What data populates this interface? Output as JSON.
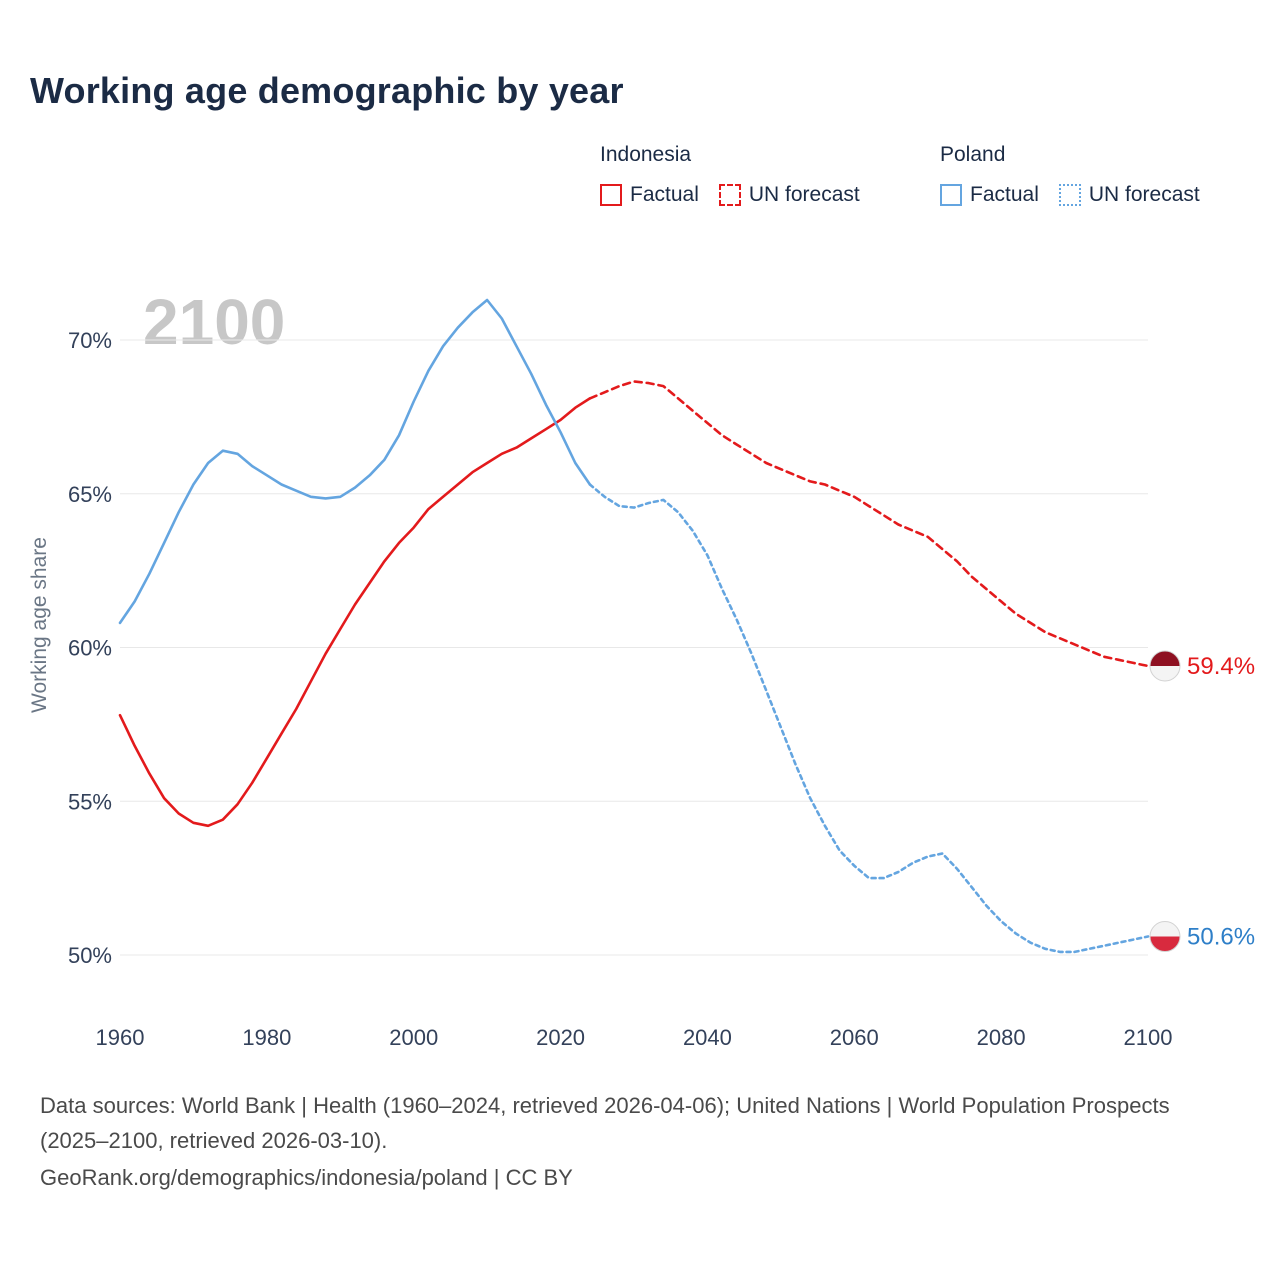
{
  "title": "Working age demographic by year",
  "watermark": "2100",
  "legend": {
    "groups": [
      {
        "name": "Indonesia",
        "color": "#e31a1c",
        "items": [
          {
            "label": "Factual",
            "style": "solid"
          },
          {
            "label": "UN forecast",
            "style": "dashed"
          }
        ]
      },
      {
        "name": "Poland",
        "color": "#64a5e0",
        "items": [
          {
            "label": "Factual",
            "style": "solid"
          },
          {
            "label": "UN forecast",
            "style": "dotted"
          }
        ]
      }
    ]
  },
  "footer": {
    "sources": "Data sources: World Bank | Health (1960–2024, retrieved 2026-04-06); United Nations | World Population Prospects (2025–2100, retrieved 2026-03-10).",
    "attribution": "GeoRank.org/demographics/indonesia/poland | CC BY"
  },
  "chart_data": {
    "type": "line",
    "title": "Working age demographic by year",
    "xlabel": "",
    "ylabel": "Working age share",
    "x_range": [
      1960,
      2100
    ],
    "y_range": [
      50,
      70
    ],
    "grid": "horizontal",
    "legend_position": "top-right",
    "xticks": [
      1960,
      1980,
      2000,
      2020,
      2040,
      2060,
      2080,
      2100
    ],
    "yticks": [
      {
        "value": 50,
        "label": "50%"
      },
      {
        "value": 55,
        "label": "55%"
      },
      {
        "value": 60,
        "label": "60%"
      },
      {
        "value": 65,
        "label": "65%"
      },
      {
        "value": 70,
        "label": "70%"
      }
    ],
    "series": [
      {
        "name": "Indonesia Factual",
        "country": "Indonesia",
        "segment": "factual",
        "color": "#e31a1c",
        "dashed": false,
        "dash_pattern": "",
        "x": [
          1960,
          1962,
          1964,
          1966,
          1968,
          1970,
          1972,
          1974,
          1976,
          1978,
          1980,
          1982,
          1984,
          1986,
          1988,
          1990,
          1992,
          1994,
          1996,
          1998,
          2000,
          2002,
          2004,
          2006,
          2008,
          2010,
          2012,
          2014,
          2016,
          2018,
          2020,
          2022,
          2024
        ],
        "y": [
          57.8,
          56.8,
          55.9,
          55.1,
          54.6,
          54.3,
          54.2,
          54.4,
          54.9,
          55.6,
          56.4,
          57.2,
          58.0,
          58.9,
          59.8,
          60.6,
          61.4,
          62.1,
          62.8,
          63.4,
          63.9,
          64.5,
          64.9,
          65.3,
          65.7,
          66.0,
          66.3,
          66.5,
          66.8,
          67.1,
          67.4,
          67.8,
          68.1
        ]
      },
      {
        "name": "Indonesia UN forecast",
        "country": "Indonesia",
        "segment": "forecast",
        "color": "#e31a1c",
        "dashed": true,
        "dash_pattern": "7 5",
        "x": [
          2024,
          2026,
          2028,
          2030,
          2032,
          2034,
          2036,
          2038,
          2040,
          2042,
          2044,
          2046,
          2048,
          2050,
          2052,
          2054,
          2056,
          2058,
          2060,
          2062,
          2064,
          2066,
          2068,
          2070,
          2072,
          2074,
          2076,
          2078,
          2080,
          2082,
          2084,
          2086,
          2088,
          2090,
          2092,
          2094,
          2096,
          2098,
          2100
        ],
        "y": [
          68.1,
          68.3,
          68.5,
          68.65,
          68.6,
          68.5,
          68.1,
          67.7,
          67.3,
          66.9,
          66.6,
          66.3,
          66.0,
          65.8,
          65.6,
          65.4,
          65.3,
          65.1,
          64.9,
          64.6,
          64.3,
          64.0,
          63.8,
          63.6,
          63.2,
          62.8,
          62.3,
          61.9,
          61.5,
          61.1,
          60.8,
          60.5,
          60.3,
          60.1,
          59.9,
          59.7,
          59.6,
          59.5,
          59.4
        ]
      },
      {
        "name": "Poland Factual",
        "country": "Poland",
        "segment": "factual",
        "color": "#64a5e0",
        "dashed": false,
        "dash_pattern": "",
        "x": [
          1960,
          1962,
          1964,
          1966,
          1968,
          1970,
          1972,
          1974,
          1976,
          1978,
          1980,
          1982,
          1984,
          1986,
          1988,
          1990,
          1992,
          1994,
          1996,
          1998,
          2000,
          2002,
          2004,
          2006,
          2008,
          2010,
          2012,
          2014,
          2016,
          2018,
          2020,
          2022,
          2024
        ],
        "y": [
          60.8,
          61.5,
          62.4,
          63.4,
          64.4,
          65.3,
          66.0,
          66.4,
          66.3,
          65.9,
          65.6,
          65.3,
          65.1,
          64.9,
          64.85,
          64.9,
          65.2,
          65.6,
          66.1,
          66.9,
          68.0,
          69.0,
          69.8,
          70.4,
          70.9,
          71.3,
          70.7,
          69.8,
          68.9,
          67.9,
          67.0,
          66.0,
          65.3
        ]
      },
      {
        "name": "Poland UN forecast",
        "country": "Poland",
        "segment": "forecast",
        "color": "#64a5e0",
        "dashed": true,
        "dash_pattern": "4 4",
        "x": [
          2024,
          2026,
          2028,
          2030,
          2032,
          2034,
          2036,
          2038,
          2040,
          2042,
          2044,
          2046,
          2048,
          2050,
          2052,
          2054,
          2056,
          2058,
          2060,
          2062,
          2064,
          2066,
          2068,
          2070,
          2072,
          2074,
          2076,
          2078,
          2080,
          2082,
          2084,
          2086,
          2088,
          2090,
          2092,
          2094,
          2096,
          2098,
          2100
        ],
        "y": [
          65.3,
          64.9,
          64.6,
          64.55,
          64.7,
          64.8,
          64.4,
          63.8,
          63.0,
          61.9,
          60.9,
          59.8,
          58.6,
          57.4,
          56.2,
          55.1,
          54.2,
          53.4,
          52.9,
          52.5,
          52.5,
          52.7,
          53.0,
          53.2,
          53.3,
          52.8,
          52.2,
          51.6,
          51.1,
          50.7,
          50.4,
          50.2,
          50.1,
          50.1,
          50.2,
          50.3,
          50.4,
          50.5,
          50.6
        ]
      }
    ],
    "end_markers": [
      {
        "country": "Indonesia",
        "label": "59.4%",
        "year": 2100,
        "value": 59.4,
        "flag_top": "#8e1021",
        "flag_bottom": "#f4f4f4",
        "label_color": "#e31a1c"
      },
      {
        "country": "Poland",
        "label": "50.6%",
        "year": 2100,
        "value": 50.6,
        "flag_top": "#f4f4f4",
        "flag_bottom": "#d82a3e",
        "label_color": "#2e7fc8"
      }
    ]
  }
}
